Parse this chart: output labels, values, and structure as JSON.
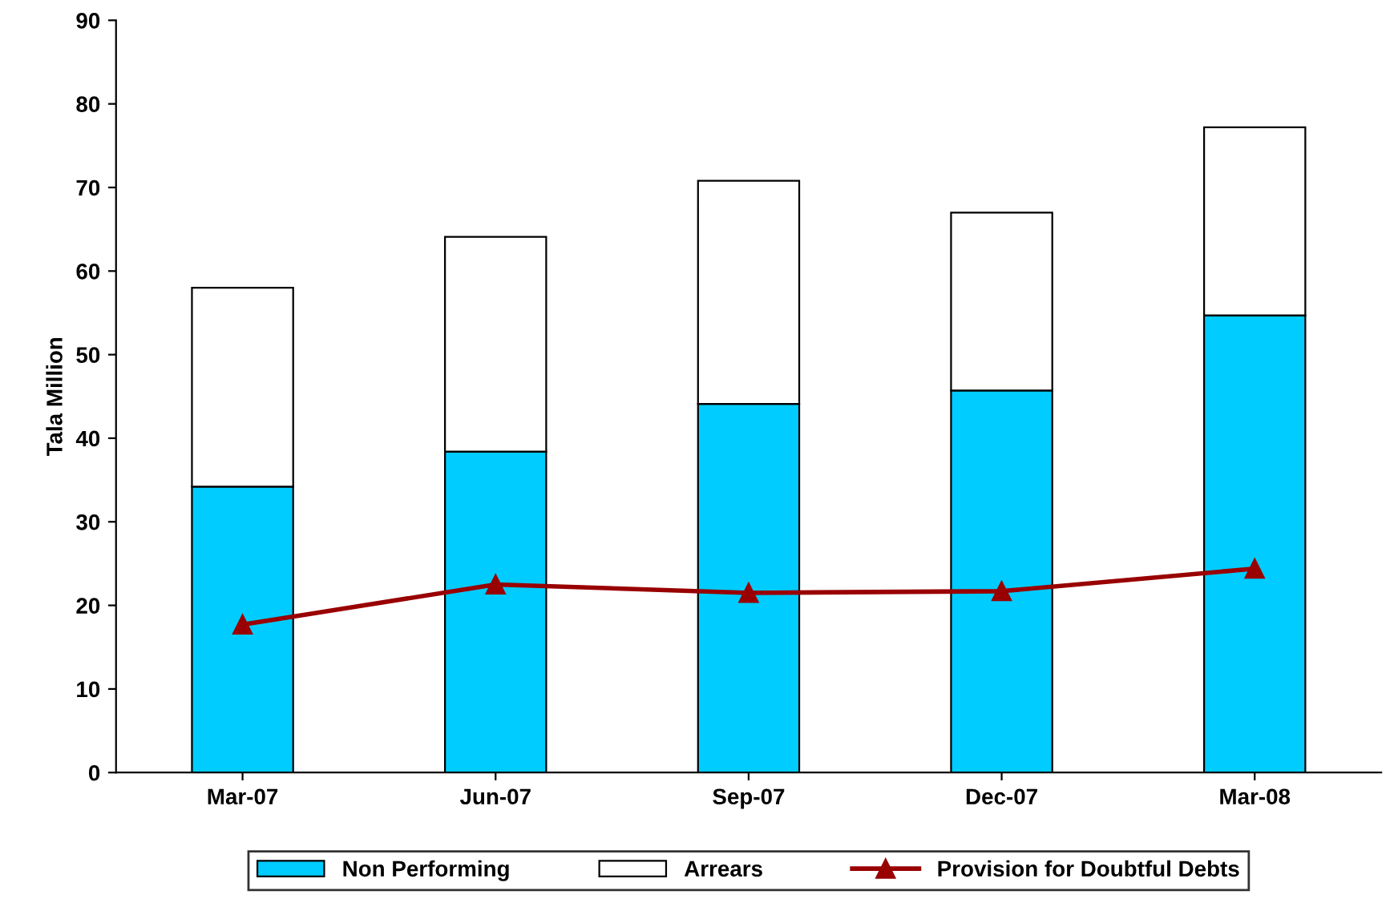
{
  "chart_data": {
    "type": "bar",
    "ylabel": "Tala Million",
    "categories": [
      "Mar-07",
      "Jun-07",
      "Sep-07",
      "Dec-07",
      "Mar-08"
    ],
    "stacked": true,
    "ylim": [
      0,
      90
    ],
    "yticks": [
      0,
      10,
      20,
      30,
      40,
      50,
      60,
      70,
      80,
      90
    ],
    "grid": false,
    "legend": "bottom",
    "series": [
      {
        "name": "Non Performing",
        "color": "#00ccff",
        "values": [
          34.2,
          38.4,
          44.1,
          45.7,
          54.7
        ]
      },
      {
        "name": "Arrears",
        "color": "#ffffff",
        "values": [
          23.8,
          25.7,
          26.7,
          21.3,
          22.5
        ]
      },
      {
        "name": "Provision for Doubtful Debts",
        "type": "line",
        "color": "#990000",
        "marker": "triangle",
        "line_style": "solid",
        "values": [
          17.7,
          22.5,
          21.5,
          21.7,
          24.4
        ]
      }
    ]
  }
}
